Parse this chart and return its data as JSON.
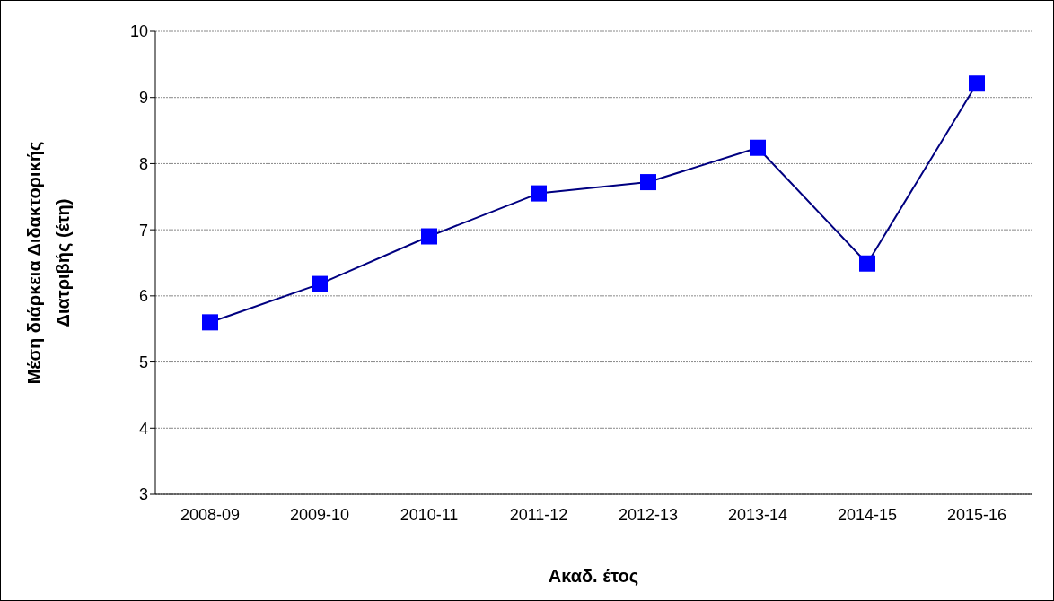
{
  "chart_data": {
    "type": "line",
    "xlabel": "Ακαδ. έτος",
    "ylabel": "Μέση διάρκεια Διδακτορικής\nΔιατριβής (έτη)",
    "categories": [
      "2008-09",
      "2009-10",
      "2010-11",
      "2011-12",
      "2012-13",
      "2013-14",
      "2014-15",
      "2015-16"
    ],
    "series": [
      {
        "color": "#0000ff",
        "values": [
          5.6,
          6.18,
          6.9,
          7.55,
          7.72,
          8.24,
          6.49,
          9.21
        ]
      }
    ],
    "ylim": [
      3,
      10
    ],
    "yticks": [
      3,
      4,
      5,
      6,
      7,
      8,
      9,
      10
    ],
    "grid": "y",
    "legend": false,
    "marker": "square",
    "line_style": "solid"
  }
}
